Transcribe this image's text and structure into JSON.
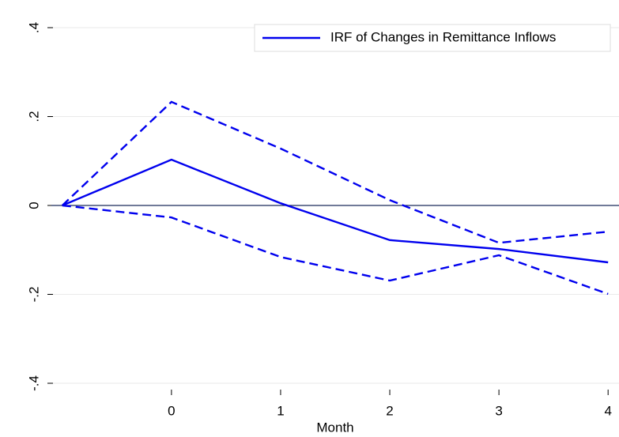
{
  "chart_data": {
    "type": "line",
    "x_label": "Month",
    "x": [
      -1,
      0,
      1,
      2,
      3,
      4
    ],
    "series": [
      {
        "name": "IRF of Changes in Remittance Inflows",
        "color": "#0000ee",
        "values": [
          0,
          0.103,
          0.005,
          -0.078,
          -0.098,
          -0.128
        ]
      },
      {
        "color": "#0000ee",
        "dash": true,
        "values": [
          0,
          0.233,
          0.128,
          0.012,
          -0.084,
          -0.059
        ]
      },
      {
        "color": "#0000ee",
        "dash": true,
        "values": [
          0,
          -0.027,
          -0.116,
          -0.169,
          -0.112,
          -0.199
        ]
      }
    ],
    "xlim": [
      -1.1,
      4.1
    ],
    "xticks": [
      0,
      1,
      2,
      3,
      4
    ],
    "ylim": [
      -0.4,
      0.4
    ],
    "yticks": [
      {
        "value": -0.4,
        "label": "-.4"
      },
      {
        "value": -0.2,
        "label": "-.2"
      },
      0,
      {
        "value": 0.2,
        "label": ".2"
      },
      {
        "value": 0.4,
        "label": ".4"
      }
    ],
    "grid": true,
    "hline": 0,
    "legend": "top-right"
  }
}
